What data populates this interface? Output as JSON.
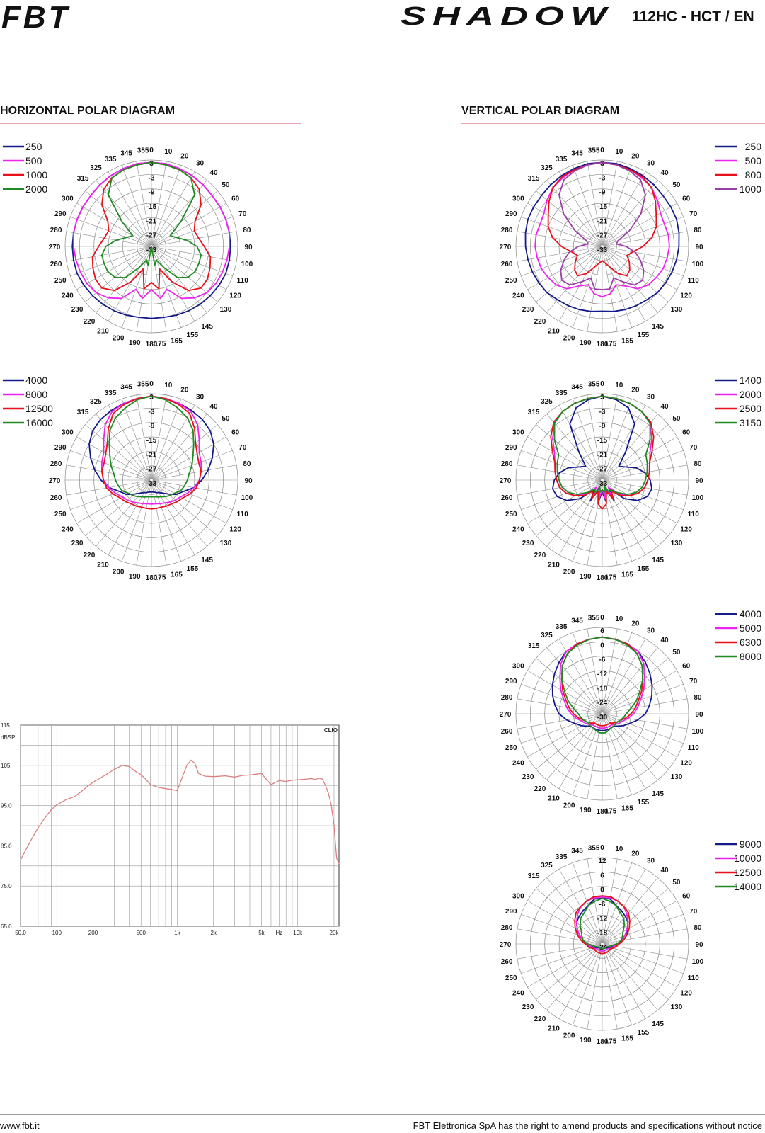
{
  "header": {
    "brand": "FBT",
    "series": "SHADOW",
    "model": "112HC - HCT / EN"
  },
  "sections": {
    "horizontal": "HORIZONTAL POLAR DIAGRAM",
    "vertical": "VERTICAL POLAR DIAGRAM"
  },
  "footer": {
    "website": "www.fbt.it",
    "disclaimer": "FBT Elettronica SpA has the right to amend products and specifications without notice"
  },
  "colors": {
    "navy": "#141a8a",
    "magenta": "#ee22ee",
    "red": "#e8101a",
    "green": "#1f8a22",
    "purple": "#9b3fa6",
    "response": "#d98080"
  },
  "chart_data": [
    {
      "id": "h1",
      "type": "polar",
      "angle_labels": [
        "180",
        "175",
        "165",
        "155",
        "145",
        "130",
        "120",
        "110",
        "100",
        "90",
        "80",
        "70",
        "60",
        "50",
        "40",
        "30",
        "20",
        "10",
        "0",
        "355",
        "345",
        "335",
        "325",
        "315",
        "300",
        "290",
        "280",
        "270",
        "260",
        "250",
        "240",
        "230",
        "220",
        "210",
        "200",
        "190"
      ],
      "radial_labels": [
        "3",
        "-3",
        "-9",
        "-15",
        "-21",
        "-27",
        "-33"
      ],
      "rlim": [
        -33,
        3
      ],
      "series": [
        {
          "name": "250",
          "color": "#141a8a",
          "r": [
            -3,
            -3,
            -2.5,
            -2,
            -1.5,
            -1,
            -0.5,
            0,
            0,
            0,
            0,
            0,
            0,
            0,
            0.5,
            1,
            1.5,
            2,
            2
          ]
        },
        {
          "name": "500",
          "color": "#ee22ee",
          "r": [
            -15,
            -11,
            -14,
            -8,
            -5,
            -3,
            -2,
            -1.5,
            -1,
            -0.5,
            0,
            0,
            0,
            0,
            0.5,
            1,
            1.5,
            2,
            2
          ]
        },
        {
          "name": "1000",
          "color": "#e8101a",
          "r": [
            -18,
            -15,
            -23,
            -16,
            -9,
            -6,
            -6,
            -7,
            -8,
            -11,
            -13,
            -14,
            -12,
            -6,
            -2,
            0,
            1,
            1.5,
            2
          ]
        },
        {
          "name": "2000",
          "color": "#1f8a22",
          "r": [
            -33,
            -25,
            -27,
            -23,
            -16,
            -13,
            -12,
            -12,
            -12,
            -14,
            -18,
            -22,
            -24,
            -17,
            -5,
            0,
            1,
            1.5,
            2
          ]
        }
      ]
    },
    {
      "id": "h2",
      "type": "polar",
      "angle_labels": [
        "180",
        "175",
        "165",
        "155",
        "145",
        "130",
        "120",
        "110",
        "100",
        "90",
        "80",
        "70",
        "60",
        "50",
        "40",
        "30",
        "20",
        "10",
        "0",
        "355",
        "345",
        "335",
        "325",
        "315",
        "300",
        "290",
        "280",
        "270",
        "260",
        "250",
        "240",
        "230",
        "220",
        "210",
        "200",
        "190"
      ],
      "radial_labels": [
        "3",
        "-3",
        "-9",
        "-15",
        "-21",
        "-27",
        "-33"
      ],
      "rlim": [
        -33,
        3
      ],
      "series": [
        {
          "name": "4000",
          "color": "#141a8a",
          "r": [
            -28,
            -28,
            -27.5,
            -27,
            -26,
            -24,
            -21,
            -19,
            -15,
            -12,
            -9,
            -6,
            -3,
            -1,
            0,
            0.5,
            1,
            1.5,
            2
          ]
        },
        {
          "name": "8000",
          "color": "#ee22ee",
          "r": [
            -23,
            -23,
            -22.5,
            -22,
            -21,
            -20,
            -19,
            -17,
            -15,
            -13,
            -12,
            -11,
            -10,
            -7,
            -3,
            0,
            1,
            1.5,
            2
          ]
        },
        {
          "name": "12500",
          "color": "#e8101a",
          "r": [
            -21,
            -21,
            -21,
            -20.5,
            -20,
            -19,
            -18,
            -16,
            -14,
            -13,
            -12,
            -12,
            -11,
            -9,
            -5,
            -1,
            0.5,
            1.5,
            2
          ]
        },
        {
          "name": "16000",
          "color": "#1f8a22",
          "r": [
            -26,
            -26,
            -25.5,
            -25,
            -24,
            -23,
            -22,
            -20,
            -19,
            -18,
            -17,
            -15,
            -13,
            -10,
            -6,
            -3,
            -1,
            1,
            2
          ]
        }
      ]
    },
    {
      "id": "v1",
      "type": "polar",
      "angle_labels": [
        "180",
        "175",
        "165",
        "155",
        "145",
        "130",
        "120",
        "110",
        "100",
        "90",
        "80",
        "70",
        "60",
        "50",
        "40",
        "30",
        "20",
        "10",
        "0",
        "355",
        "345",
        "335",
        "325",
        "315",
        "300",
        "290",
        "280",
        "270",
        "260",
        "250",
        "240",
        "230",
        "220",
        "210",
        "200",
        "190"
      ],
      "radial_labels": [
        "3",
        "-3",
        "-9",
        "-15",
        "-21",
        "-27",
        "-33"
      ],
      "rlim": [
        -33,
        3
      ],
      "series": [
        {
          "name": "250",
          "color": "#141a8a",
          "r": [
            -6,
            -5.5,
            -5,
            -4.5,
            -4,
            -3,
            -2.5,
            -2,
            -1.5,
            -1,
            -0.5,
            0,
            0,
            0,
            0.5,
            1,
            1.5,
            2,
            2
          ]
        },
        {
          "name": "500",
          "color": "#ee22ee",
          "r": [
            -12,
            -13,
            -16,
            -14,
            -10,
            -8,
            -7,
            -6,
            -5.5,
            -5,
            -5,
            -5.5,
            -5,
            -3,
            -1,
            0,
            1,
            1.5,
            2
          ]
        },
        {
          "name": "800",
          "color": "#e8101a",
          "r": [
            -27,
            -26,
            -24,
            -20,
            -17,
            -18,
            -20,
            -22,
            -20,
            -16,
            -12,
            -9,
            -7,
            -4,
            -1,
            0.5,
            1,
            1.5,
            2
          ]
        },
        {
          "name": "1000",
          "color": "#9b3fa6",
          "r": [
            -15,
            -15,
            -19,
            -16,
            -12,
            -11,
            -13,
            -16,
            -19,
            -23,
            -27,
            -26,
            -20,
            -12,
            -5,
            -1,
            0.5,
            1.5,
            2
          ]
        }
      ]
    },
    {
      "id": "v2",
      "type": "polar",
      "angle_labels": [
        "180",
        "175",
        "165",
        "155",
        "145",
        "130",
        "120",
        "110",
        "100",
        "90",
        "80",
        "70",
        "60",
        "50",
        "40",
        "30",
        "20",
        "10",
        "0",
        "355",
        "345",
        "335",
        "325",
        "315",
        "300",
        "290",
        "280",
        "270",
        "260",
        "250",
        "240",
        "230",
        "220",
        "210",
        "200",
        "190"
      ],
      "radial_labels": [
        "3",
        "-3",
        "-9",
        "-15",
        "-21",
        "-27",
        "-33"
      ],
      "rlim": [
        -33,
        3
      ],
      "series": [
        {
          "name": "1400",
          "color": "#141a8a",
          "r": [
            -28,
            -24,
            -30,
            -23,
            -28,
            -21,
            -16,
            -13,
            -12,
            -13,
            -15,
            -18,
            -22,
            -24,
            -18,
            -6,
            -1,
            1,
            2
          ]
        },
        {
          "name": "2000",
          "color": "#ee22ee",
          "r": [
            -29,
            -25,
            -30,
            -26,
            -29,
            -24,
            -20,
            -17,
            -15,
            -14,
            -13,
            -12,
            -10,
            -6,
            -2,
            0,
            1,
            1.5,
            2
          ]
        },
        {
          "name": "2500",
          "color": "#e8101a",
          "r": [
            -21,
            -23,
            -28,
            -24,
            -27,
            -23,
            -20,
            -17,
            -15,
            -14,
            -13,
            -12,
            -9,
            -5,
            -1.5,
            0,
            1,
            1.5,
            2
          ]
        },
        {
          "name": "3150",
          "color": "#1f8a22",
          "r": [
            -29,
            -28,
            -30,
            -27,
            -28,
            -25,
            -21,
            -18,
            -16,
            -15,
            -14,
            -13,
            -12,
            -7,
            -2,
            0,
            1,
            1.5,
            2
          ]
        }
      ]
    },
    {
      "id": "v3",
      "type": "polar",
      "angle_labels": [
        "180",
        "175",
        "165",
        "155",
        "145",
        "130",
        "120",
        "110",
        "100",
        "90",
        "80",
        "70",
        "60",
        "50",
        "40",
        "30",
        "20",
        "10",
        "0",
        "355",
        "345",
        "335",
        "325",
        "315",
        "300",
        "290",
        "280",
        "270",
        "260",
        "250",
        "240",
        "230",
        "220",
        "210",
        "200",
        "190"
      ],
      "radial_labels": [
        "6",
        "0",
        "-6",
        "-12",
        "-18",
        "-24",
        "-30"
      ],
      "rlim": [
        -30,
        6
      ],
      "series": [
        {
          "name": "4000",
          "color": "#141a8a",
          "r": [
            -23,
            -23,
            -23,
            -23,
            -23,
            -22,
            -20,
            -18,
            -15,
            -12,
            -10,
            -8,
            -6,
            -4,
            -2,
            0,
            1,
            1.5,
            2
          ]
        },
        {
          "name": "5000",
          "color": "#ee22ee",
          "r": [
            -24,
            -24,
            -24,
            -24,
            -24,
            -23,
            -22,
            -21,
            -19,
            -17,
            -15,
            -13,
            -10,
            -7,
            -3,
            0,
            1,
            1.5,
            2
          ]
        },
        {
          "name": "6300",
          "color": "#e8101a",
          "r": [
            -25,
            -25,
            -25,
            -25,
            -25,
            -24,
            -23,
            -22,
            -20,
            -18,
            -16,
            -14,
            -11,
            -8,
            -4,
            -1,
            1,
            1.5,
            2
          ]
        },
        {
          "name": "8000",
          "color": "#1f8a22",
          "r": [
            -22,
            -22,
            -22.5,
            -23,
            -23,
            -23,
            -23,
            -22,
            -21,
            -20,
            -18,
            -15,
            -12,
            -8,
            -4,
            -1,
            0.5,
            1.5,
            2
          ]
        }
      ]
    },
    {
      "id": "v4",
      "type": "polar",
      "angle_labels": [
        "180",
        "175",
        "165",
        "155",
        "145",
        "130",
        "120",
        "110",
        "100",
        "90",
        "80",
        "70",
        "60",
        "50",
        "40",
        "30",
        "20",
        "10",
        "0",
        "355",
        "345",
        "335",
        "325",
        "315",
        "300",
        "290",
        "280",
        "270",
        "260",
        "250",
        "240",
        "230",
        "220",
        "210",
        "200",
        "190"
      ],
      "radial_labels": [
        "12",
        "6",
        "0",
        "-6",
        "-12",
        "-18",
        "-24"
      ],
      "rlim": [
        -24,
        12
      ],
      "series": [
        {
          "name": "9000",
          "color": "#141a8a",
          "r": [
            -22,
            -22,
            -22,
            -22,
            -22,
            -21.5,
            -21,
            -20,
            -19,
            -17,
            -15,
            -13,
            -12,
            -10,
            -9,
            -8,
            -7,
            -5,
            -5
          ]
        },
        {
          "name": "10000",
          "color": "#ee22ee",
          "r": [
            -21,
            -21,
            -21,
            -21,
            -21,
            -21,
            -20,
            -19.5,
            -19,
            -17.5,
            -16,
            -14,
            -12,
            -10,
            -8,
            -6,
            -5,
            -4.5,
            -4.5
          ]
        },
        {
          "name": "12500",
          "color": "#e8101a",
          "r": [
            -20,
            -20,
            -20,
            -20,
            -20,
            -20,
            -20,
            -19,
            -18,
            -17,
            -15,
            -13,
            -11,
            -9,
            -7,
            -6,
            -5,
            -4,
            -4
          ]
        },
        {
          "name": "14000",
          "color": "#1f8a22",
          "r": [
            -22,
            -22,
            -22,
            -22,
            -22,
            -22,
            -21.5,
            -21,
            -20,
            -18,
            -16,
            -15,
            -14,
            -12,
            -10,
            -9,
            -7,
            -6,
            -5
          ]
        }
      ]
    },
    {
      "id": "fr",
      "type": "line",
      "brand_label": "CLIO",
      "ylabel": "dBSPL",
      "xscale": "log",
      "xlim": [
        50,
        22000
      ],
      "ylim": [
        65,
        115
      ],
      "yticks": [
        "115",
        "105",
        "95.0",
        "85.0",
        "75.0",
        "65.0"
      ],
      "xticks": [
        "50.0",
        "100",
        "200",
        "500",
        "1k",
        "2k",
        "5k",
        "Hz",
        "10k",
        "20k"
      ],
      "series": [
        {
          "name": "",
          "color": "#d98080",
          "x": [
            50,
            60,
            70,
            80,
            90,
            100,
            120,
            140,
            160,
            180,
            200,
            250,
            300,
            350,
            400,
            450,
            500,
            550,
            600,
            700,
            800,
            900,
            1000,
            1100,
            1200,
            1300,
            1400,
            1500,
            1700,
            2000,
            2500,
            3000,
            3500,
            4000,
            4500,
            5000,
            5500,
            6000,
            7000,
            8000,
            9000,
            10000,
            11000,
            12000,
            13000,
            14000,
            15000,
            16000,
            17000,
            18000,
            19000,
            20000,
            21000,
            22000
          ],
          "y": [
            81.5,
            86,
            89.5,
            92,
            94,
            95.2,
            96.5,
            97.2,
            98.5,
            99.8,
            100.8,
            102.5,
            104,
            105,
            104.7,
            103.5,
            102.7,
            101.5,
            100.2,
            99.5,
            99.2,
            99,
            98.7,
            102,
            105,
            106.3,
            105.5,
            103,
            102.3,
            102.2,
            102.4,
            102.1,
            102.5,
            102.6,
            102.8,
            103,
            101.5,
            100.2,
            101.2,
            101,
            101.3,
            101.4,
            101.5,
            101.6,
            101.7,
            101.5,
            101.8,
            101.6,
            100,
            98,
            95,
            90,
            82,
            80.5
          ]
        }
      ]
    }
  ]
}
